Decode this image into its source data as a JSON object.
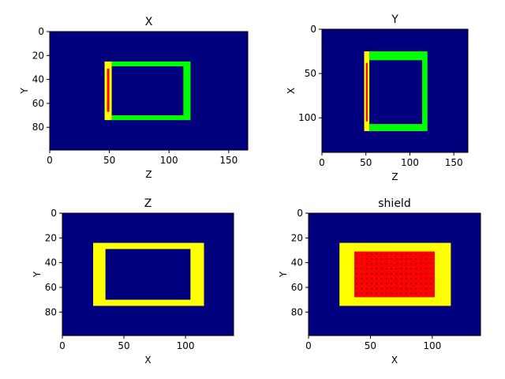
{
  "chart_data": [
    {
      "type": "heatmap",
      "title": "X",
      "xlabel": "Z",
      "ylabel": "Y",
      "xlim": [
        0,
        166
      ],
      "ylim": [
        99,
        0
      ],
      "xticks": [
        0,
        50,
        100,
        150
      ],
      "yticks": [
        0,
        20,
        40,
        60,
        80
      ],
      "background_color": "#00007f",
      "regions": [
        {
          "label": "yellow-strip",
          "color": "#ffff00",
          "x0": 46,
          "x1": 52,
          "y0": 25,
          "y1": 74
        },
        {
          "label": "green-frame-outer",
          "color": "#00ff00",
          "x0": 52,
          "x1": 118,
          "y0": 25,
          "y1": 74
        },
        {
          "label": "green-frame-inner",
          "color": "#00007f",
          "x0": 52,
          "x1": 112,
          "y0": 29,
          "y1": 70
        },
        {
          "label": "red-line",
          "color": "#ff0000",
          "x0": 48,
          "x1": 50,
          "y0": 31,
          "y1": 67
        }
      ]
    },
    {
      "type": "heatmap",
      "title": "Y",
      "xlabel": "Z",
      "ylabel": "X",
      "xlim": [
        0,
        166
      ],
      "ylim": [
        139,
        0
      ],
      "xticks": [
        0,
        50,
        100,
        150
      ],
      "yticks": [
        0,
        50,
        100
      ],
      "background_color": "#00007f",
      "regions": [
        {
          "label": "yellow-strip",
          "color": "#ffff00",
          "x0": 48,
          "x1": 54,
          "y0": 25,
          "y1": 115
        },
        {
          "label": "green-frame-outer",
          "color": "#00ff00",
          "x0": 54,
          "x1": 120,
          "y0": 25,
          "y1": 115
        },
        {
          "label": "green-frame-inner",
          "color": "#00007f",
          "x0": 54,
          "x1": 114,
          "y0": 35,
          "y1": 107
        },
        {
          "label": "red-line",
          "color": "#ff0000",
          "x0": 50,
          "x1": 52,
          "y0": 38,
          "y1": 104
        }
      ]
    },
    {
      "type": "heatmap",
      "title": "Z",
      "xlabel": "X",
      "ylabel": "Y",
      "xlim": [
        0,
        139
      ],
      "ylim": [
        99,
        0
      ],
      "xticks": [
        0,
        50,
        100
      ],
      "yticks": [
        0,
        20,
        40,
        60,
        80
      ],
      "background_color": "#00007f",
      "regions": [
        {
          "label": "yellow-frame-outer",
          "color": "#ffff00",
          "x0": 25,
          "x1": 115,
          "y0": 24,
          "y1": 75
        },
        {
          "label": "yellow-frame-inner",
          "color": "#00007f",
          "x0": 35,
          "x1": 104,
          "y0": 29,
          "y1": 70
        }
      ]
    },
    {
      "type": "heatmap",
      "title": "shield",
      "xlabel": "X",
      "ylabel": "Y",
      "xlim": [
        0,
        139
      ],
      "ylim": [
        99,
        0
      ],
      "xticks": [
        0,
        50,
        100
      ],
      "yticks": [
        0,
        20,
        40,
        60,
        80
      ],
      "background_color": "#00007f",
      "regions": [
        {
          "label": "yellow-block",
          "color": "#ffff00",
          "x0": 25,
          "x1": 115,
          "y0": 24,
          "y1": 75
        },
        {
          "label": "red-block",
          "color": "#ff0000",
          "x0": 37,
          "x1": 102,
          "y0": 31,
          "y1": 68
        }
      ],
      "dot_grid": {
        "color": "#000000",
        "x0": 39,
        "x1": 100,
        "y0": 33,
        "y1": 66,
        "step": 4
      }
    }
  ]
}
